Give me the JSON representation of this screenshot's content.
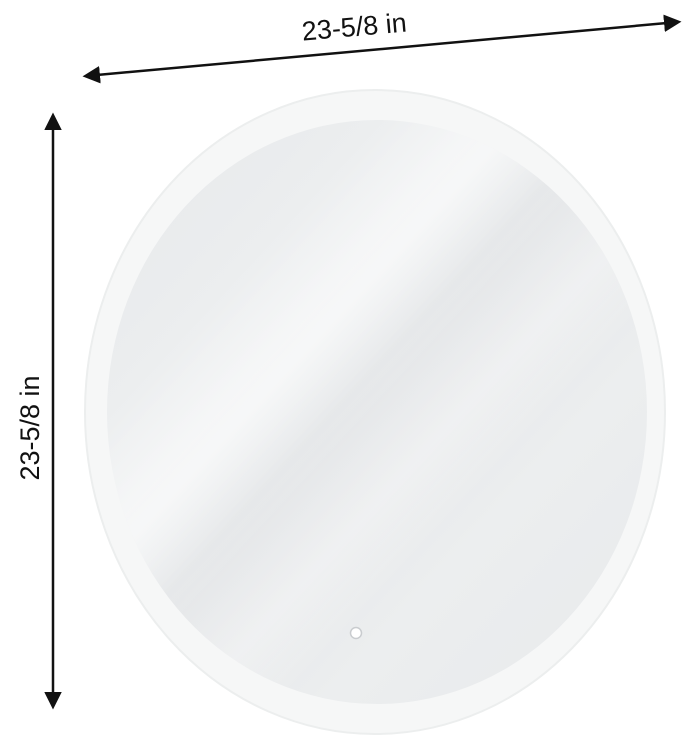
{
  "dimensions": {
    "width_label": "23-5/8 in",
    "height_label": "23-5/8 in"
  },
  "colors": {
    "arrow": "#111111",
    "frame": "#f2f4f4",
    "glass": "#eceeef",
    "touch_button": "#ffffff"
  }
}
